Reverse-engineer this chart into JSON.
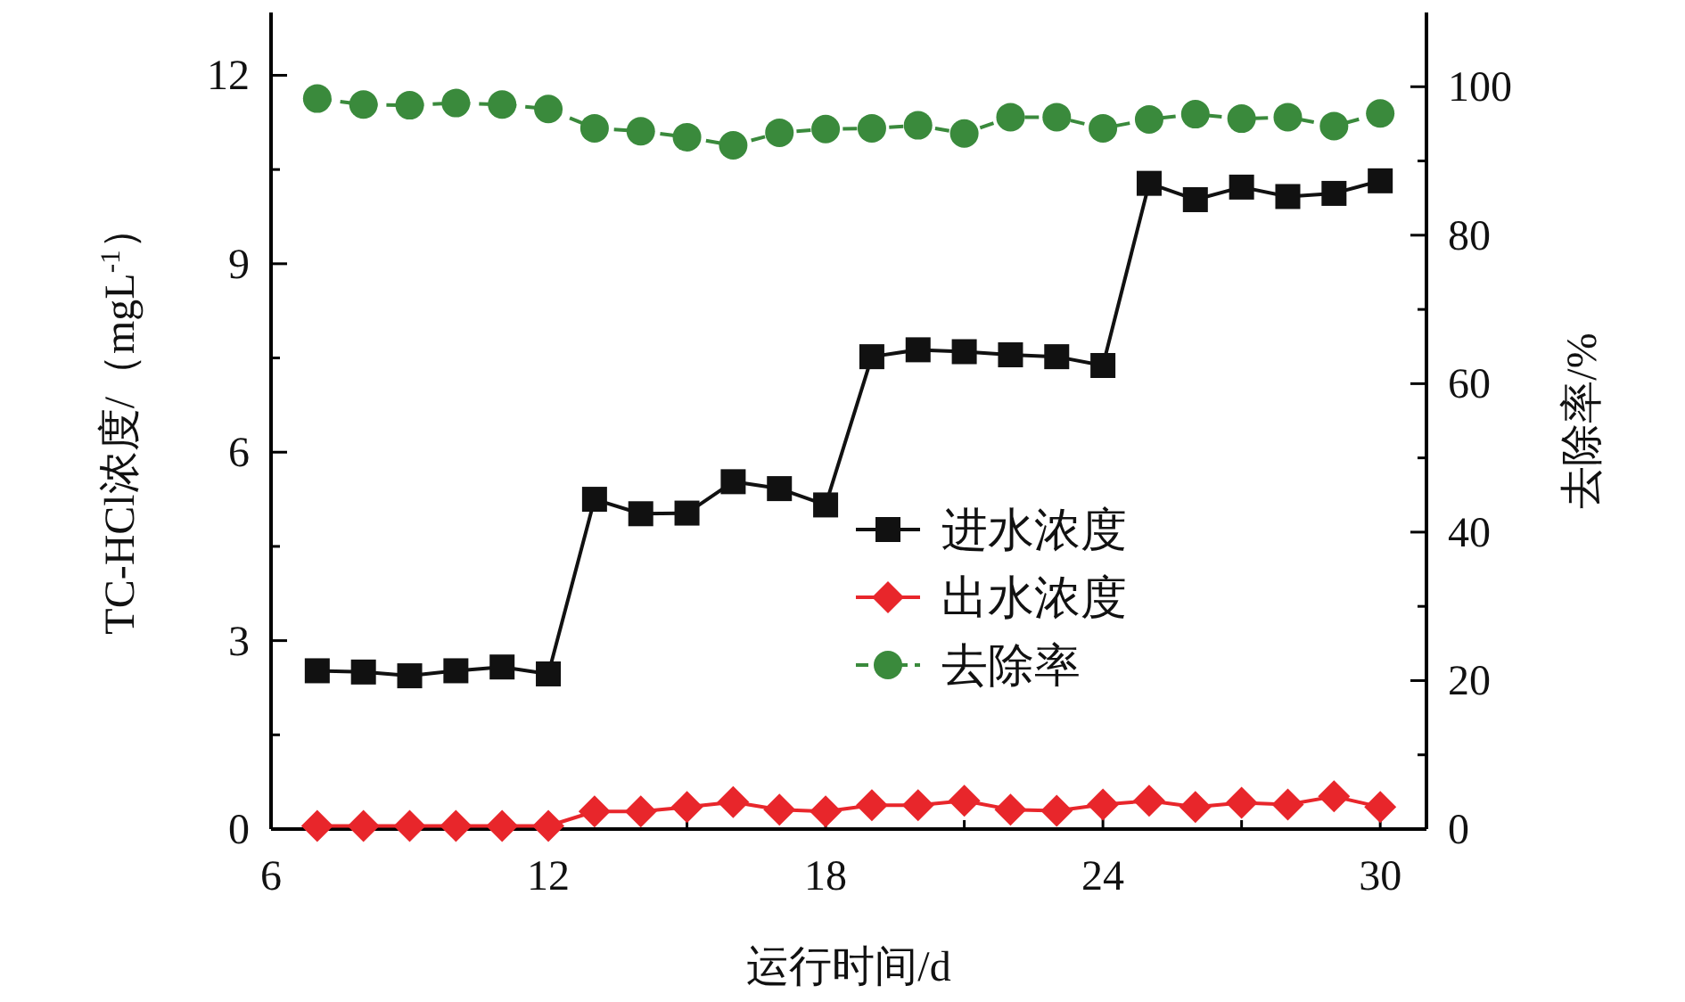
{
  "chart_data": {
    "type": "line",
    "xlabel": "运行时间/d",
    "ylabel": "TC-HCl浓度/（mgL$^{-1}$）",
    "y2label": "去除率/%",
    "xlim": [
      6,
      31
    ],
    "xticks": [
      6,
      {
        "value": 9,
        "label": null
      },
      12,
      {
        "value": 15,
        "label": null
      },
      18,
      {
        "value": 21,
        "label": null
      },
      24,
      {
        "value": 27,
        "label": null
      },
      30
    ],
    "ylim": [
      0,
      13
    ],
    "yticks": [
      0,
      {
        "value": 1.5,
        "label": null
      },
      3,
      {
        "value": 4.5,
        "label": null
      },
      6,
      {
        "value": 7.5,
        "label": null
      },
      9,
      {
        "value": 10.5,
        "label": null
      },
      12
    ],
    "y2lim": [
      0,
      110
    ],
    "y2ticks": [
      0,
      {
        "value": 10,
        "label": null
      },
      20,
      {
        "value": 30,
        "label": null
      },
      40,
      {
        "value": 50,
        "label": null
      },
      60,
      {
        "value": 70,
        "label": null
      },
      80,
      {
        "value": 90,
        "label": null
      },
      100
    ],
    "x": [
      7,
      8,
      9,
      10,
      11,
      12,
      13,
      14,
      15,
      16,
      17,
      18,
      19,
      20,
      21,
      22,
      23,
      24,
      25,
      26,
      27,
      28,
      29,
      30
    ],
    "legend": "center",
    "grid": false,
    "series": [
      {
        "name": "进水浓度",
        "color": "#111111",
        "marker": "square",
        "line_style": "solid",
        "values": [
          2.52,
          2.5,
          2.44,
          2.52,
          2.58,
          2.47,
          5.25,
          5.02,
          5.03,
          5.53,
          5.42,
          5.16,
          7.52,
          7.63,
          7.6,
          7.55,
          7.52,
          7.38,
          10.28,
          10.02,
          10.22,
          10.07,
          10.12,
          10.32
        ]
      },
      {
        "name": "出水浓度",
        "color": "#e8262b",
        "marker": "diamond",
        "line_style": "solid",
        "values": [
          0.05,
          0.05,
          0.05,
          0.05,
          0.05,
          0.05,
          0.28,
          0.28,
          0.35,
          0.43,
          0.31,
          0.28,
          0.38,
          0.38,
          0.45,
          0.31,
          0.29,
          0.39,
          0.45,
          0.35,
          0.42,
          0.39,
          0.52,
          0.35
        ]
      },
      {
        "name": "去除率",
        "color": "#3a8a3c",
        "marker": "circle",
        "line_style": "dashed",
        "axis": "y2",
        "values": [
          98.4,
          97.6,
          97.5,
          97.8,
          97.6,
          97.0,
          94.4,
          94.0,
          93.2,
          92.1,
          93.8,
          94.3,
          94.4,
          94.8,
          93.7,
          95.9,
          95.9,
          94.4,
          95.6,
          96.3,
          95.7,
          95.9,
          94.7,
          96.4
        ]
      }
    ]
  }
}
